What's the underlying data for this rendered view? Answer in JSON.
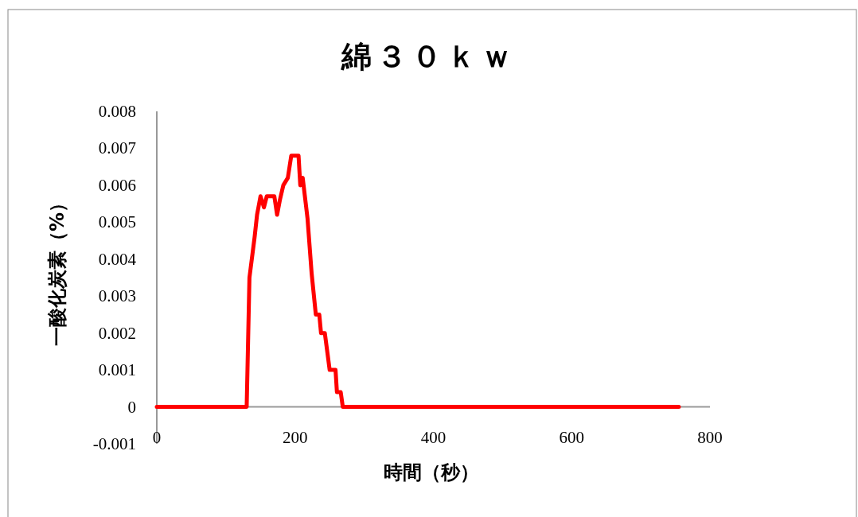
{
  "chart_data": {
    "type": "line",
    "title": "綿３０ｋｗ",
    "xlabel": "時間（秒）",
    "ylabel": "一酸化炭素（%）",
    "x": [
      0,
      50,
      100,
      130,
      134,
      141.5,
      145,
      150,
      155,
      159,
      170,
      174,
      178,
      183,
      189.5,
      194.5,
      205,
      207.5,
      211,
      218,
      224,
      230,
      235,
      237.5,
      243,
      250,
      258.5,
      260.5,
      266,
      269,
      300,
      400,
      500,
      600,
      700,
      755
    ],
    "series": [
      {
        "color": "#ff0000",
        "values": [
          0,
          0,
          0,
          0,
          0.0035,
          0.0046,
          0.0052,
          0.0057,
          0.0054,
          0.0057,
          0.0057,
          0.0052,
          0.0056,
          0.006,
          0.0062,
          0.0068,
          0.0068,
          0.006,
          0.0062,
          0.0051,
          0.0036,
          0.0025,
          0.0025,
          0.002,
          0.002,
          0.001,
          0.001,
          0.0004,
          0.0004,
          0,
          0,
          0,
          0,
          0,
          0,
          0
        ]
      }
    ],
    "xlim": [
      0,
      800
    ],
    "xticks": [
      0,
      200,
      400,
      600,
      800
    ],
    "ylim": [
      -0.001,
      0.008
    ],
    "yticks": [
      -0.001,
      0,
      0.001,
      0.002,
      0.003,
      0.004,
      0.005,
      0.006,
      0.007,
      0.008
    ],
    "grid": false,
    "marker": "none",
    "line_style": "solid"
  }
}
